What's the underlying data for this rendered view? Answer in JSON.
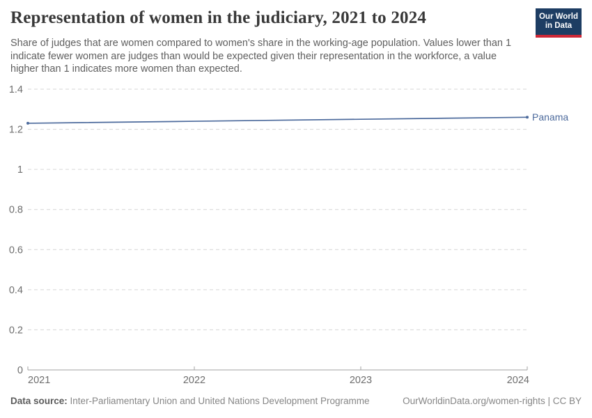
{
  "logo": {
    "line1": "Our World",
    "line2": "in Data"
  },
  "chart_data": {
    "type": "line",
    "title": "Representation of women in the judiciary, 2021 to 2024",
    "subtitle": "Share of judges that are women compared to women's share in the working-age population. Values lower than 1 indicate fewer women are judges than would be expected given their representation in the workforce, a value higher than 1 indicates more women than expected.",
    "x": [
      2021,
      2022,
      2023,
      2024
    ],
    "xlim": [
      2021,
      2024
    ],
    "ylim": [
      0,
      1.4
    ],
    "yticks": [
      0,
      0.2,
      0.4,
      0.6,
      0.8,
      1,
      1.2,
      1.4
    ],
    "ytick_labels": [
      "0",
      "0.2",
      "0.4",
      "0.6",
      "0.8",
      "1",
      "1.2",
      "1.4"
    ],
    "series": [
      {
        "name": "Panama",
        "values": [
          1.23,
          1.24,
          1.25,
          1.26
        ],
        "color": "#4c6a9c"
      }
    ],
    "grid": "horizontal-dashed",
    "legend_position": "end-of-line-label",
    "xlabel": "",
    "ylabel": ""
  },
  "footer": {
    "source_label": "Data source:",
    "source_text": "Inter-Parliamentary Union and United Nations Development Programme",
    "right_text": "OurWorldinData.org/women-rights | CC BY"
  },
  "colors": {
    "line": "#4c6a9c",
    "grid": "#d6d6d6",
    "axis": "#a1a1a1",
    "tick_text": "#6e6e6e",
    "title_text": "#383838",
    "subtitle_text": "#5e5e5e",
    "footer_text": "#858585",
    "logo_bg": "#1d3d63",
    "logo_accent": "#cd2736"
  }
}
